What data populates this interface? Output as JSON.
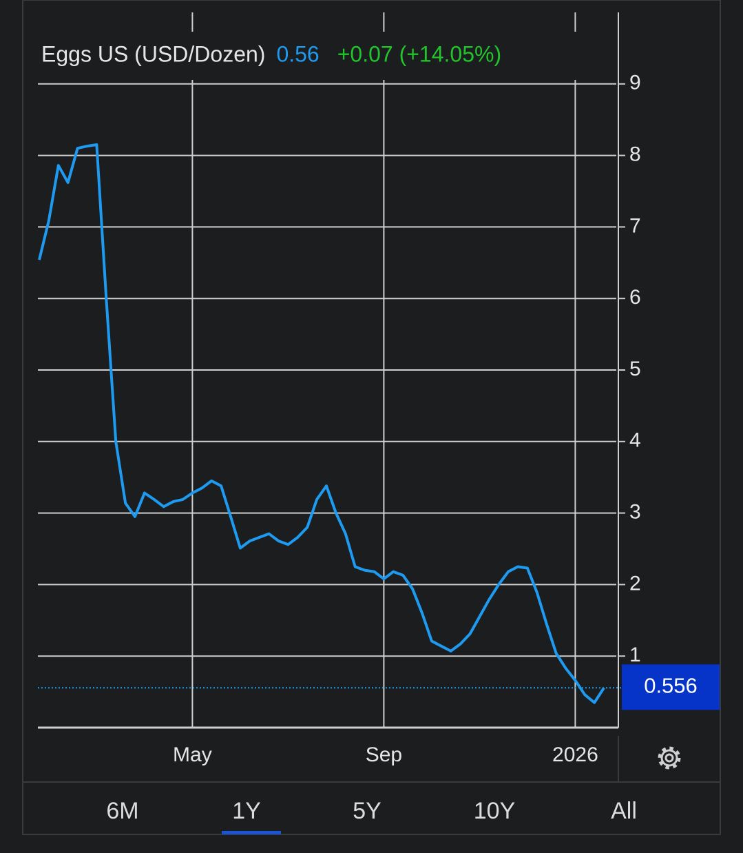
{
  "chart_data": {
    "type": "line",
    "title": "Eggs US (USD/Dozen)",
    "price": 0.56,
    "change": "+0.07 (+14.05%)",
    "color": "#1e9bf0",
    "change_color": "#22c32b",
    "categories": [
      null,
      null,
      null,
      null,
      null,
      null,
      null,
      null,
      null,
      null,
      null,
      null,
      null,
      null,
      null,
      null,
      "May",
      null,
      null,
      null,
      null,
      null,
      null,
      null,
      null,
      null,
      null,
      null,
      null,
      null,
      null,
      null,
      null,
      null,
      null,
      null,
      "Sep",
      null,
      null,
      null,
      null,
      null,
      null,
      null,
      null,
      null,
      null,
      null,
      null,
      null,
      null,
      null,
      null,
      null,
      null,
      null,
      "2026",
      null,
      null,
      null
    ],
    "values": [
      6.54,
      7.09,
      7.86,
      7.62,
      8.1,
      8.13,
      8.15,
      6.0,
      4.0,
      3.14,
      2.95,
      3.28,
      3.19,
      3.09,
      3.16,
      3.19,
      3.28,
      3.35,
      3.45,
      3.38,
      2.95,
      2.51,
      2.61,
      2.66,
      2.71,
      2.61,
      2.56,
      2.66,
      2.8,
      3.19,
      3.38,
      3.0,
      2.71,
      2.25,
      2.2,
      2.18,
      2.08,
      2.18,
      2.13,
      1.94,
      1.6,
      1.21,
      1.14,
      1.07,
      1.17,
      1.31,
      1.55,
      1.79,
      2.0,
      2.18,
      2.25,
      2.23,
      1.89,
      1.45,
      1.04,
      0.83,
      0.66,
      0.46,
      0.35,
      0.556
    ],
    "ylim": [
      0,
      10
    ],
    "yticks": [
      1,
      2,
      3,
      4,
      5,
      6,
      7,
      8,
      9
    ],
    "grid": true
  },
  "range_tabs": {
    "options": [
      "6M",
      "1Y",
      "5Y",
      "10Y",
      "All"
    ],
    "selected": 1
  }
}
